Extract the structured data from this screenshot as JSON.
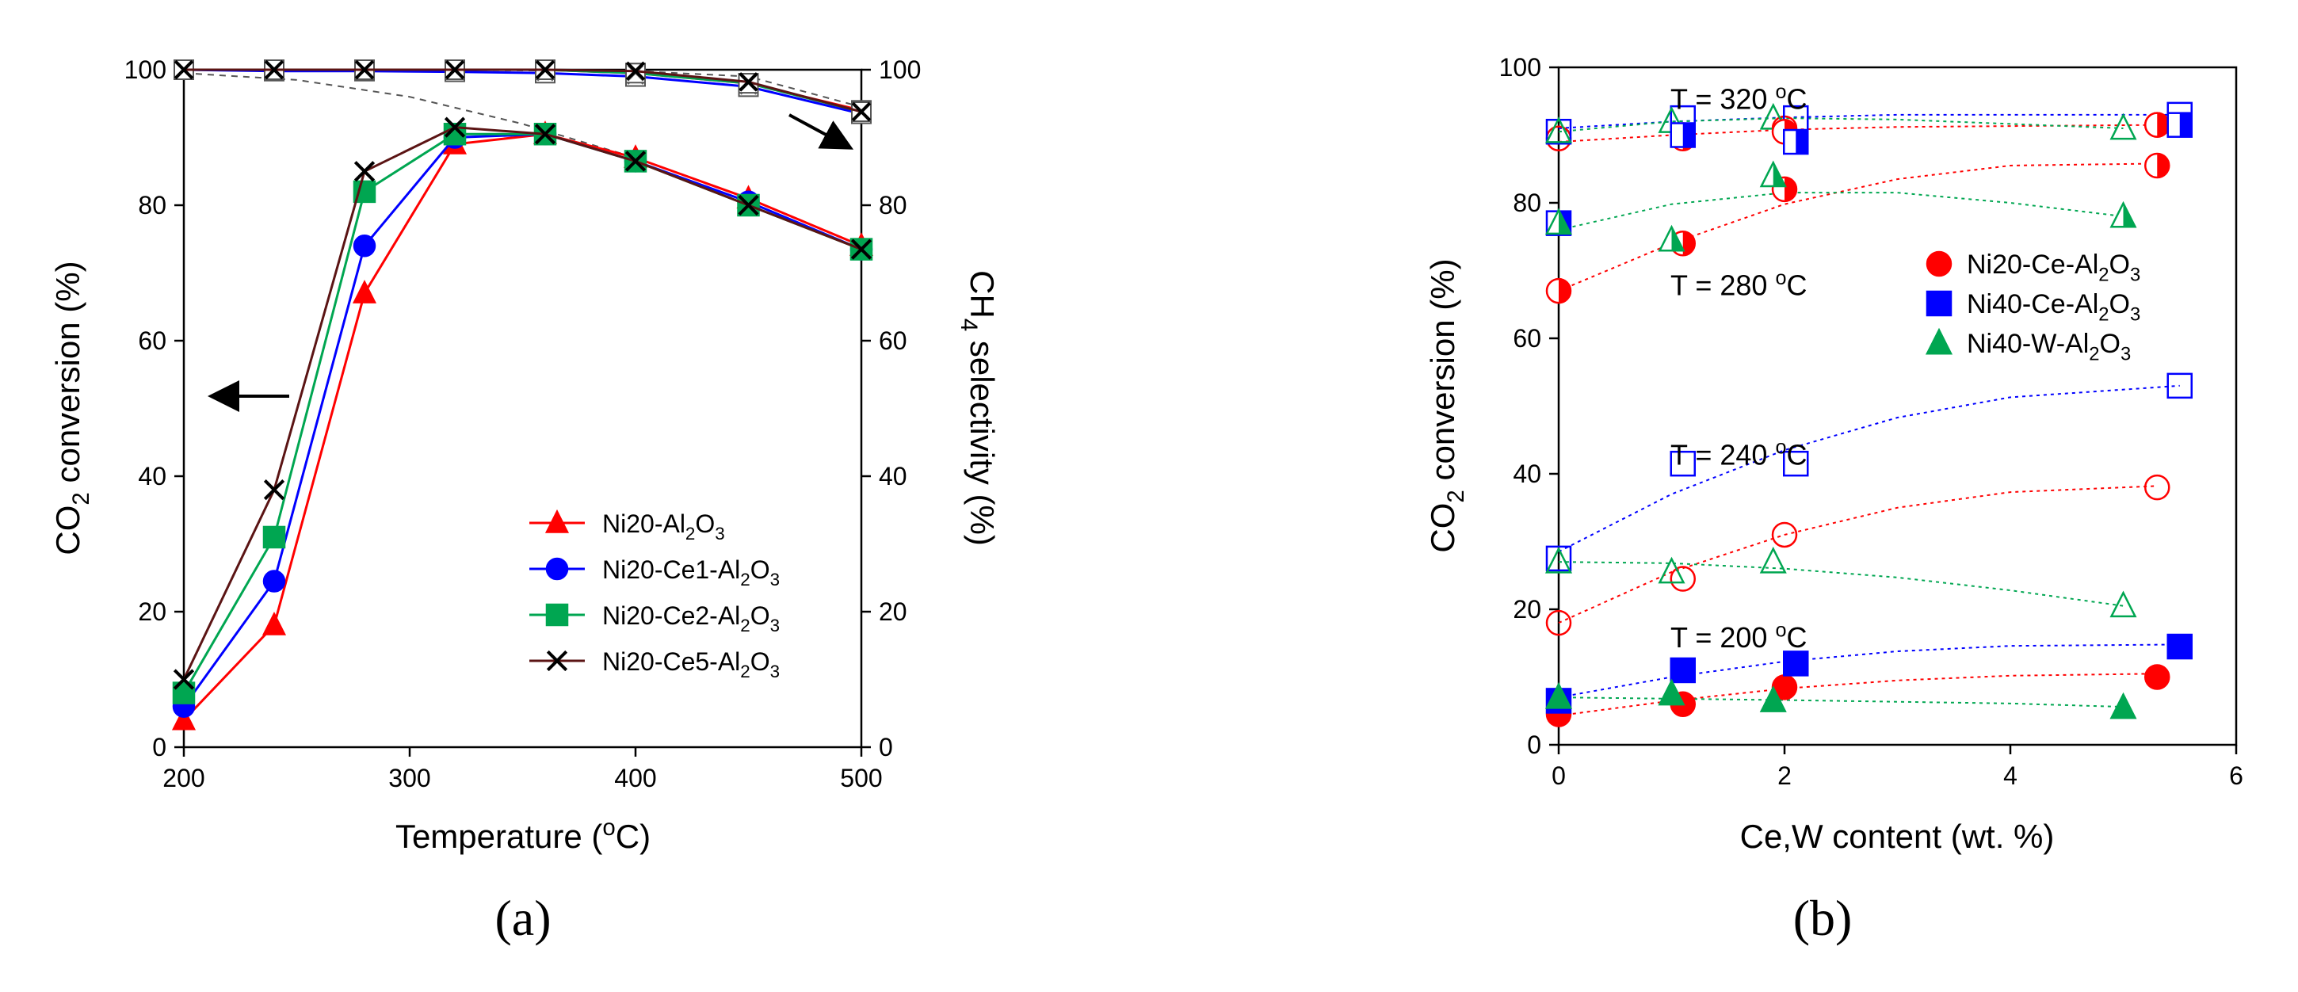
{
  "chart_data": [
    {
      "type": "line",
      "panel_label": "(a)",
      "xlabel": "Temperature (°C)",
      "ylabel_left": "CO₂ conversion (%)",
      "ylabel_right": "CH₄ selectivity (%)",
      "xlim": [
        200,
        500
      ],
      "ylim": [
        0,
        100
      ],
      "x_ticks": [
        200,
        300,
        400,
        500
      ],
      "y_ticks": [
        0,
        20,
        40,
        60,
        80,
        100
      ],
      "legend_position": "lower-right",
      "x": [
        200,
        240,
        280,
        320,
        360,
        400,
        450,
        500
      ],
      "series": [
        {
          "name": "Ni20-Al2O3",
          "name_sub": [
            "Ni20-Al",
            "2",
            "O",
            "3"
          ],
          "color": "#ff0000",
          "marker": "triangle",
          "conversion": [
            4.0,
            18.0,
            67.0,
            89.0,
            90.5,
            87.0,
            81.0,
            74.0
          ],
          "selectivity": [
            100,
            100,
            100,
            100,
            100,
            99.5,
            98,
            94
          ]
        },
        {
          "name": "Ni20-Ce1-Al2O3",
          "name_sub": [
            "Ni20-Ce1-Al",
            "2",
            "O",
            "3"
          ],
          "color": "#0000ff",
          "marker": "circle",
          "conversion": [
            6.0,
            24.5,
            74.0,
            90.0,
            90.5,
            86.5,
            80.5,
            73.5
          ],
          "selectivity": [
            100,
            99.8,
            99.8,
            99.7,
            99.5,
            99,
            97.5,
            93.5
          ]
        },
        {
          "name": "Ni20-Ce2-Al2O3",
          "name_sub": [
            "Ni20-Ce2-Al",
            "2",
            "O",
            "3"
          ],
          "color": "#00a651",
          "marker": "square",
          "conversion": [
            8.0,
            31.0,
            82.0,
            90.5,
            90.5,
            86.5,
            80.0,
            73.5
          ],
          "selectivity": [
            100,
            100,
            100,
            100,
            100,
            99.5,
            98,
            93.8
          ]
        },
        {
          "name": "Ni20-Ce5-Al2O3",
          "name_sub": [
            "Ni20-Ce5-Al",
            "2",
            "O",
            "3"
          ],
          "color": "#5b1414",
          "marker": "x",
          "conversion": [
            10.0,
            38.0,
            85.0,
            91.5,
            90.5,
            86.5,
            80.0,
            73.5
          ],
          "selectivity": [
            100,
            100,
            100,
            100,
            100,
            99.8,
            98.2,
            93.8
          ]
        }
      ],
      "equilibrium_conversion": {
        "x": [
          200,
          250,
          300,
          350,
          400,
          450,
          500
        ],
        "y": [
          99.5,
          98.5,
          96,
          92,
          87,
          81,
          74
        ]
      },
      "equilibrium_selectivity": {
        "x": [
          200,
          300,
          400,
          450,
          500
        ],
        "y": [
          100,
          100,
          99.8,
          99,
          94.5
        ]
      }
    },
    {
      "type": "scatter",
      "panel_label": "(b)",
      "xlabel": "Ce,W content (wt. %)",
      "ylabel": "CO₂ conversion (%)",
      "xlim": [
        0,
        6
      ],
      "ylim": [
        0,
        100
      ],
      "x_ticks": [
        0,
        2,
        4,
        6
      ],
      "y_ticks": [
        0,
        20,
        40,
        60,
        80,
        100
      ],
      "legend_position": "right",
      "legend": [
        {
          "name": "Ni20-Ce-Al2O3",
          "name_sub": [
            "Ni20-Ce-Al",
            "2",
            "O",
            "3"
          ],
          "color": "#ff0000",
          "marker": "circle"
        },
        {
          "name": "Ni40-Ce-Al2O3",
          "name_sub": [
            "Ni40-Ce-Al",
            "2",
            "O",
            "3"
          ],
          "color": "#0000ff",
          "marker": "square"
        },
        {
          "name": "Ni40-W-Al2O3",
          "name_sub": [
            "Ni40-W-Al",
            "2",
            "O",
            "3"
          ],
          "color": "#00a651",
          "marker": "triangle"
        }
      ],
      "temperature_labels": [
        {
          "text": "T = 320 °C",
          "x": 1.2,
          "y": 95.5
        },
        {
          "text": "T = 280 °C",
          "x": 1.2,
          "y": 68
        },
        {
          "text": "T = 240 °C",
          "x": 1.2,
          "y": 43
        },
        {
          "text": "T = 200 °C",
          "x": 1.2,
          "y": 16
        }
      ],
      "series": [
        {
          "catalyst": "Ni20-Ce-Al2O3",
          "temperature": 200,
          "color": "#ff0000",
          "marker": "circle",
          "style": "filled",
          "x": [
            0,
            1.1,
            2.0,
            5.3
          ],
          "y": [
            4.5,
            6.0,
            8.5,
            10.0
          ],
          "trend": [
            [
              0,
              4.3
            ],
            [
              1,
              6.5
            ],
            [
              2,
              8.3
            ],
            [
              3,
              9.5
            ],
            [
              4,
              10.2
            ],
            [
              5.3,
              10.5
            ]
          ]
        },
        {
          "catalyst": "Ni40-Ce-Al2O3",
          "temperature": 200,
          "color": "#0000ff",
          "marker": "square",
          "style": "filled",
          "x": [
            0,
            1.1,
            2.1,
            5.5
          ],
          "y": [
            6.5,
            11.0,
            12.0,
            14.5
          ],
          "trend": [
            [
              0,
              7
            ],
            [
              1,
              10
            ],
            [
              2,
              12.3
            ],
            [
              3,
              13.8
            ],
            [
              4,
              14.6
            ],
            [
              5.5,
              14.8
            ]
          ]
        },
        {
          "catalyst": "Ni40-W-Al2O3",
          "temperature": 200,
          "color": "#00a651",
          "marker": "triangle",
          "style": "filled",
          "x": [
            0,
            1.0,
            1.9,
            5.0
          ],
          "y": [
            7.0,
            7.5,
            6.5,
            5.5
          ],
          "trend": [
            [
              0,
              7
            ],
            [
              2,
              6.6
            ],
            [
              4,
              6.1
            ],
            [
              5,
              5.6
            ]
          ]
        },
        {
          "catalyst": "Ni20-Ce-Al2O3",
          "temperature": 240,
          "color": "#ff0000",
          "marker": "circle",
          "style": "open",
          "x": [
            0,
            1.1,
            2.0,
            5.3
          ],
          "y": [
            18.0,
            24.5,
            31.0,
            38.0
          ],
          "trend": [
            [
              0,
              18
            ],
            [
              1,
              25.5
            ],
            [
              2,
              31
            ],
            [
              3,
              35
            ],
            [
              4,
              37.3
            ],
            [
              5.3,
              38.2
            ]
          ]
        },
        {
          "catalyst": "Ni40-Ce-Al2O3",
          "temperature": 240,
          "color": "#0000ff",
          "marker": "square",
          "style": "open",
          "x": [
            0,
            1.1,
            2.1,
            5.5
          ],
          "y": [
            27.5,
            41.5,
            41.5,
            53.0
          ],
          "trend": [
            [
              0,
              28.5
            ],
            [
              1,
              37
            ],
            [
              2,
              43.5
            ],
            [
              3,
              48.3
            ],
            [
              4,
              51.3
            ],
            [
              5.5,
              53
            ]
          ]
        },
        {
          "catalyst": "Ni40-W-Al2O3",
          "temperature": 240,
          "color": "#00a651",
          "marker": "triangle",
          "style": "open",
          "x": [
            0,
            1.0,
            1.9,
            5.0
          ],
          "y": [
            27.0,
            25.5,
            27.0,
            20.5
          ],
          "trend": [
            [
              0,
              27
            ],
            [
              1,
              26.8
            ],
            [
              2,
              26
            ],
            [
              3,
              24.7
            ],
            [
              4,
              22.8
            ],
            [
              5,
              20.5
            ]
          ]
        },
        {
          "catalyst": "Ni20-Ce-Al2O3",
          "temperature": 280,
          "color": "#ff0000",
          "marker": "circle",
          "style": "half",
          "x": [
            0,
            1.1,
            2.0,
            5.3
          ],
          "y": [
            67.0,
            74.0,
            82.0,
            85.5
          ],
          "trend": [
            [
              0,
              67
            ],
            [
              1,
              74
            ],
            [
              2,
              79.8
            ],
            [
              3,
              83.5
            ],
            [
              4,
              85.5
            ],
            [
              5.3,
              85.8
            ]
          ]
        },
        {
          "catalyst": "Ni40-Ce-Al2O3",
          "temperature": 280,
          "color": "#0000ff",
          "marker": "square",
          "style": "half",
          "x": [
            0
          ],
          "y": [
            77.0
          ],
          "trend": []
        },
        {
          "catalyst": "Ni40-W-Al2O3",
          "temperature": 280,
          "color": "#00a651",
          "marker": "triangle",
          "style": "half",
          "x": [
            0,
            1.0,
            1.9,
            5.0
          ],
          "y": [
            77.0,
            74.5,
            84.0,
            78.0
          ],
          "trend": [
            [
              0,
              76
            ],
            [
              1,
              79.8
            ],
            [
              2,
              81.5
            ],
            [
              3,
              81.5
            ],
            [
              4,
              80
            ],
            [
              5,
              78
            ]
          ]
        },
        {
          "catalyst": "Ni20-Ce-Al2O3",
          "temperature": 320,
          "color": "#ff0000",
          "marker": "circle",
          "style": "open",
          "x": [
            0,
            1.1,
            2.0,
            5.3
          ],
          "y": [
            89.5,
            90.0,
            91.0,
            91.5
          ],
          "trend": [
            [
              0,
              89
            ],
            [
              1,
              90
            ],
            [
              2,
              90.8
            ],
            [
              3,
              91.2
            ],
            [
              5.3,
              91.5
            ]
          ]
        },
        {
          "catalyst": "Ni40-Ce-Al2O3",
          "temperature": 320,
          "color": "#0000ff",
          "marker": "square",
          "style": "open",
          "x": [
            0,
            1.1,
            2.1,
            5.5
          ],
          "y": [
            90.5,
            92.5,
            92.5,
            93.0
          ],
          "trend": [
            [
              0,
              91
            ],
            [
              1,
              92
            ],
            [
              2,
              92.6
            ],
            [
              3,
              93
            ],
            [
              5.5,
              93
            ]
          ]
        },
        {
          "catalyst": "Ni40-W-Al2O3",
          "temperature": 320,
          "color": "#00a651",
          "marker": "triangle",
          "style": "open",
          "x": [
            0,
            1.0,
            1.9,
            5.0
          ],
          "y": [
            90.5,
            92.0,
            92.5,
            91.0
          ],
          "trend": [
            [
              0,
              90.5
            ],
            [
              1,
              92
            ],
            [
              2,
              92.5
            ],
            [
              3,
              92.3
            ],
            [
              5,
              91
            ]
          ]
        },
        {
          "catalyst": "Ni20-Ce-Al2O3",
          "temperature": 320,
          "color": "#ff0000",
          "marker": "circle",
          "style": "half",
          "x": [
            1.1,
            2.0,
            5.3
          ],
          "y": [
            89.5,
            90.5,
            91.5
          ],
          "trend": []
        },
        {
          "catalyst": "Ni40-Ce-Al2O3",
          "temperature": 320,
          "color": "#0000ff",
          "marker": "square",
          "style": "half",
          "x": [
            1.1,
            2.1,
            5.5
          ],
          "y": [
            90.0,
            89.0,
            91.5
          ],
          "trend": []
        }
      ]
    }
  ]
}
